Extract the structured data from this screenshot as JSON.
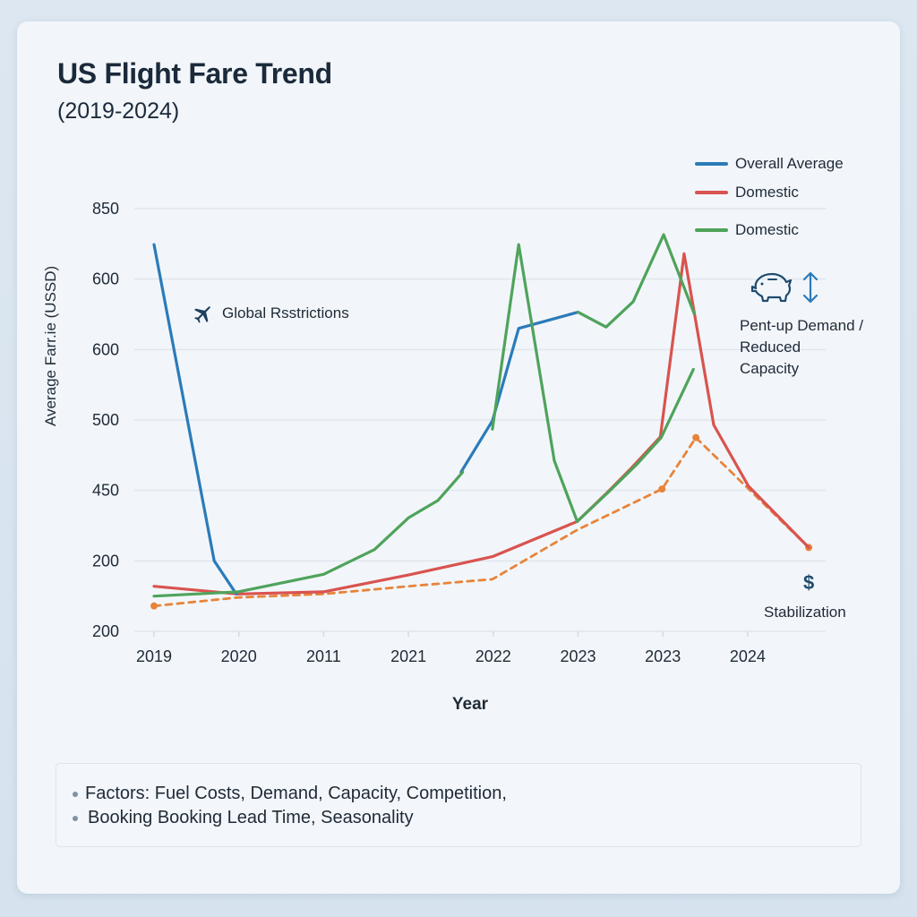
{
  "header": {
    "title": "US Flight Fare Trend",
    "subtitle": "(2019-2024)"
  },
  "legend": [
    {
      "label": "Overall Average",
      "color": "#2b7bb9"
    },
    {
      "label": "Domestic",
      "color": "#d9534f"
    },
    {
      "label": "Domestic",
      "color": "#4fa35b"
    }
  ],
  "annotations": {
    "global_restrictions": {
      "icon": "airplane-icon",
      "text": "Global Rsstrictions"
    },
    "pentup": {
      "icons": [
        "piggy-bank-icon",
        "up-down-arrow-icon"
      ],
      "lines": [
        "Pent-up Demand /",
        "Reduced",
        "Capacity"
      ]
    },
    "stabilization": {
      "icon": "dollar-icon",
      "symbol": "$",
      "text": "Stabilization"
    }
  },
  "footer": {
    "lines": [
      "Factors: Fuel Costs, Demand, Capacity, Competition,",
      "Booking Booking Lead Time, Seasonality"
    ]
  },
  "chart_data": {
    "type": "line",
    "title": "US Flight Fare Trend",
    "subtitle": "(2019-2024)",
    "xlabel": "Year",
    "ylabel": "Average Farr.ie (USSD)",
    "categories": [
      "2019",
      "2020",
      "2011",
      "2021",
      "2022",
      "2023",
      "2023",
      "2024"
    ],
    "y_tick_labels": [
      "200",
      "200",
      "450",
      "500",
      "600",
      "600",
      "850"
    ],
    "y_scale_note": "y values are expressed in gridline units: 0 = bottom gridline (label '200'), 6 = top gridline (label '850'); tick labels are non-monotonic as printed",
    "ylim": [
      0,
      6
    ],
    "xlim": [
      0,
      7
    ],
    "grid": true,
    "legend_position": "top-right",
    "series": [
      {
        "name": "Overall Average",
        "color": "#2b7bb9",
        "style": "solid",
        "segments": [
          [
            [
              0,
              5.49
            ],
            [
              0.71,
              1.0
            ],
            [
              0.97,
              0.53
            ]
          ],
          [
            [
              3.62,
              2.26
            ],
            [
              3.99,
              2.99
            ],
            [
              4.3,
              4.3
            ],
            [
              5.0,
              4.53
            ]
          ]
        ]
      },
      {
        "name": "Domestic",
        "color": "#d9534f",
        "style": "solid",
        "segments": [
          [
            [
              0,
              0.64
            ],
            [
              0.99,
              0.53
            ],
            [
              2.0,
              0.56
            ],
            [
              3.0,
              0.8
            ],
            [
              3.99,
              1.06
            ],
            [
              4.99,
              1.56
            ],
            [
              5.36,
              1.99
            ],
            [
              5.63,
              2.32
            ],
            [
              5.97,
              2.76
            ],
            [
              6.25,
              5.36
            ],
            [
              6.6,
              2.93
            ],
            [
              7.01,
              2.06
            ],
            [
              7.72,
              1.19
            ]
          ]
        ]
      },
      {
        "name": "Domestic",
        "color": "#4fa35b",
        "style": "solid",
        "segments": [
          [
            [
              0,
              0.5
            ],
            [
              0.99,
              0.56
            ],
            [
              2.0,
              0.81
            ],
            [
              2.6,
              1.16
            ],
            [
              3.0,
              1.61
            ],
            [
              3.35,
              1.86
            ],
            [
              3.64,
              2.26
            ]
          ],
          [
            [
              3.99,
              2.87
            ],
            [
              4.3,
              5.49
            ],
            [
              4.72,
              2.42
            ],
            [
              4.99,
              1.56
            ]
          ],
          [
            [
              4.99,
              1.56
            ],
            [
              5.37,
              1.99
            ],
            [
              5.7,
              2.38
            ],
            [
              5.98,
              2.75
            ],
            [
              6.36,
              3.72
            ]
          ],
          [
            [
              5.0,
              4.53
            ],
            [
              5.33,
              4.32
            ],
            [
              5.65,
              4.68
            ],
            [
              6.01,
              5.63
            ],
            [
              6.37,
              4.51
            ]
          ]
        ]
      },
      {
        "name": "Orange trend (unlabeled)",
        "color": "#e8843a",
        "style": "dashed",
        "segments": [
          [
            [
              0,
              0.36
            ],
            [
              0.99,
              0.48
            ],
            [
              2.0,
              0.53
            ],
            [
              3.0,
              0.64
            ],
            [
              3.99,
              0.74
            ],
            [
              4.99,
              1.44
            ],
            [
              5.99,
              2.02
            ],
            [
              6.39,
              2.75
            ],
            [
              7.72,
              1.19
            ]
          ]
        ]
      }
    ]
  }
}
